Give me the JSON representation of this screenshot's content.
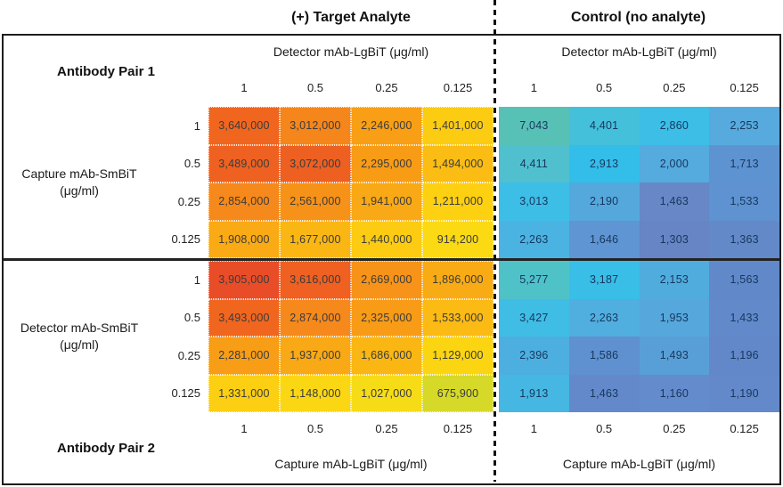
{
  "figure": {
    "condition_titles": {
      "analyte": "(+) Target Analyte",
      "control": "Control (no analyte)"
    },
    "pair1_label": "Antibody Pair 1",
    "pair2_label": "Antibody Pair 2",
    "top_col_axis": "Detector mAb-LgBiT (μg/ml)",
    "bottom_col_axis": "Capture mAb-LgBiT (μg/ml)",
    "pair1_row_axis_line1": "Capture mAb-SmBiT",
    "pair2_row_axis_line1": "Detector mAb-SmBiT",
    "axis_unit_line2": "(μg/ml)"
  },
  "chart_data": {
    "type": "heatmap",
    "units": "μg/ml",
    "col_ticks": [
      "1",
      "0.5",
      "0.25",
      "0.125"
    ],
    "row_ticks": [
      "1",
      "0.5",
      "0.25",
      "0.125"
    ],
    "palette_note": {
      "analyte_scale": [
        "#E94D28",
        "#F0661F",
        "#F89C16",
        "#FCCC12",
        "#D6D927"
      ],
      "control_scale": [
        "#57C1B5",
        "#38BEE7",
        "#55AADE",
        "#6787C6"
      ]
    },
    "panels": [
      {
        "pair": "Antibody Pair 1",
        "condition": "(+) Target Analyte",
        "col_axis": "Detector mAb-LgBiT (μg/ml)",
        "row_axis": "Capture mAb-SmBiT (μg/ml)",
        "palette": "warm",
        "values": [
          [
            3640000,
            3012000,
            2246000,
            1401000
          ],
          [
            3489000,
            3072000,
            2295000,
            1494000
          ],
          [
            2854000,
            2561000,
            1941000,
            1211000
          ],
          [
            1908000,
            1677000,
            1440000,
            914200
          ]
        ],
        "display": [
          [
            "3,640,000",
            "3,012,000",
            "2,246,000",
            "1,401,000"
          ],
          [
            "3,489,000",
            "3,072,000",
            "2,295,000",
            "1,494,000"
          ],
          [
            "2,854,000",
            "2,561,000",
            "1,941,000",
            "1,211,000"
          ],
          [
            "1,908,000",
            "1,677,000",
            "1,440,000",
            "914,200"
          ]
        ],
        "colors": [
          [
            "#F0661F",
            "#F5861C",
            "#F99F15",
            "#FCCC12"
          ],
          [
            "#EF6120",
            "#EE5F22",
            "#F89C16",
            "#FBBC14"
          ],
          [
            "#F6891B",
            "#F79218",
            "#F9A915",
            "#FDD012"
          ],
          [
            "#F9AA15",
            "#FAB714",
            "#FCCB12",
            "#FBDA14"
          ]
        ]
      },
      {
        "pair": "Antibody Pair 1",
        "condition": "Control (no analyte)",
        "col_axis": "Detector mAb-LgBiT (μg/ml)",
        "row_axis": "Capture mAb-SmBiT (μg/ml)",
        "palette": "cool",
        "values": [
          [
            7043,
            4401,
            2860,
            2253
          ],
          [
            4411,
            2913,
            2000,
            1713
          ],
          [
            3013,
            2190,
            1463,
            1533
          ],
          [
            2263,
            1646,
            1303,
            1363
          ]
        ],
        "display": [
          [
            "7,043",
            "4,401",
            "2,860",
            "2,253"
          ],
          [
            "4,411",
            "2,913",
            "2,000",
            "1,713"
          ],
          [
            "3,013",
            "2,190",
            "1,463",
            "1,533"
          ],
          [
            "2,263",
            "1,646",
            "1,303",
            "1,363"
          ]
        ],
        "colors": [
          [
            "#57C1B5",
            "#44C0DB",
            "#3CBEE7",
            "#57AADD"
          ],
          [
            "#50C0CF",
            "#33BDE9",
            "#55AADE",
            "#5E93D1"
          ],
          [
            "#3DBEE6",
            "#55A8DC",
            "#6787C6",
            "#5F92D0"
          ],
          [
            "#4BB3E2",
            "#5E95D2",
            "#6784C5",
            "#6489C9"
          ]
        ]
      },
      {
        "pair": "Antibody Pair 2",
        "condition": "(+) Target Analyte",
        "col_axis": "Capture mAb-LgBiT (μg/ml)",
        "row_axis": "Detector mAb-SmBiT (μg/ml)",
        "palette": "warm",
        "values": [
          [
            3905000,
            3616000,
            2669000,
            1896000
          ],
          [
            3493000,
            2874000,
            2325000,
            1533000
          ],
          [
            2281000,
            1937000,
            1686000,
            1129000
          ],
          [
            1331000,
            1148000,
            1027000,
            675900
          ]
        ],
        "display": [
          [
            "3,905,000",
            "3,616,000",
            "2,669,000",
            "1,896,000"
          ],
          [
            "3,493,000",
            "2,874,000",
            "2,325,000",
            "1,533,000"
          ],
          [
            "2,281,000",
            "1,937,000",
            "1,686,000",
            "1,129,000"
          ],
          [
            "1,331,000",
            "1,148,000",
            "1,027,000",
            "675,900"
          ]
        ],
        "colors": [
          [
            "#E94D28",
            "#EF6021",
            "#F79318",
            "#F9AB15"
          ],
          [
            "#F0661F",
            "#F6891B",
            "#F89B16",
            "#FBBA14"
          ],
          [
            "#F89D16",
            "#F9A915",
            "#FAB714",
            "#FCD512"
          ],
          [
            "#FCCF12",
            "#FBD713",
            "#F6DC17",
            "#D6D927"
          ]
        ]
      },
      {
        "pair": "Antibody Pair 2",
        "condition": "Control (no analyte)",
        "col_axis": "Capture mAb-LgBiT (μg/ml)",
        "row_axis": "Detector mAb-SmBiT (μg/ml)",
        "palette": "cool",
        "values": [
          [
            5277,
            3187,
            2153,
            1563
          ],
          [
            3427,
            2263,
            1953,
            1433
          ],
          [
            2396,
            1586,
            1493,
            1196
          ],
          [
            1913,
            1463,
            1160,
            1190
          ]
        ],
        "display": [
          [
            "5,277",
            "3,187",
            "2,153",
            "1,563"
          ],
          [
            "3,427",
            "2,263",
            "1,953",
            "1,433"
          ],
          [
            "2,396",
            "1,586",
            "1,493",
            "1,196"
          ],
          [
            "1,913",
            "1,463",
            "1,160",
            "1,190"
          ]
        ],
        "colors": [
          [
            "#4FC2C7",
            "#38BEE7",
            "#51ACDE",
            "#6189CA"
          ],
          [
            "#3FBDE5",
            "#50AFDF",
            "#55A7DC",
            "#628ACB"
          ],
          [
            "#4DAFDF",
            "#5F90CF",
            "#599FD7",
            "#6288C9"
          ],
          [
            "#45B7E2",
            "#6389CB",
            "#648BCC",
            "#6489CA"
          ]
        ]
      }
    ]
  }
}
